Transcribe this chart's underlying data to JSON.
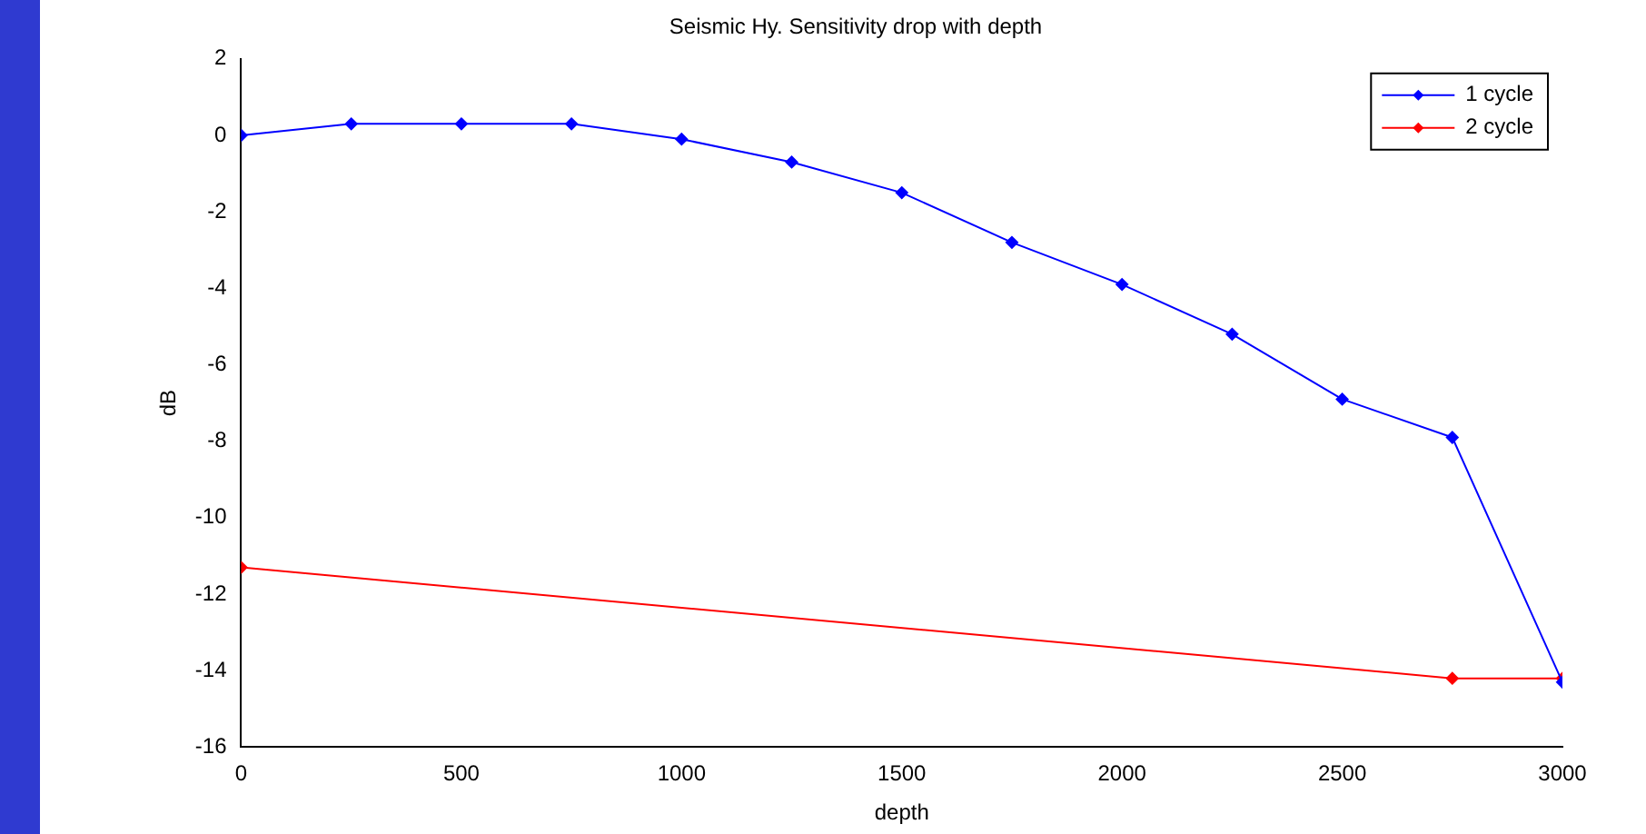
{
  "chart_data": {
    "type": "line",
    "title": "Seismic Hy. Sensitivity drop with depth",
    "xlabel": "depth",
    "ylabel": "dB",
    "xlim": [
      0,
      3000
    ],
    "xticks": [
      0,
      500,
      1000,
      1500,
      2000,
      2500,
      3000
    ],
    "ylim": [
      -16,
      2
    ],
    "yticks": [
      -16,
      -14,
      -12,
      -10,
      -8,
      -6,
      -4,
      -2,
      0,
      2
    ],
    "series": [
      {
        "name": "1 cycle",
        "color": "#0000ff",
        "x": [
          0,
          250,
          500,
          750,
          1000,
          1250,
          1500,
          1750,
          2000,
          2250,
          2500,
          2750,
          3000
        ],
        "values": [
          0,
          0.3,
          0.3,
          0.3,
          -0.1,
          -0.7,
          -1.5,
          -2.8,
          -3.9,
          -5.2,
          -6.9,
          -7.9,
          -14.3
        ]
      },
      {
        "name": "2 cycle",
        "color": "#ff0000",
        "x": [
          0,
          2750,
          3000
        ],
        "values": [
          -11.3,
          -14.2,
          -14.2
        ]
      }
    ],
    "marker": "diamond",
    "line_style": "solid",
    "grid": false,
    "legend": "top right"
  }
}
